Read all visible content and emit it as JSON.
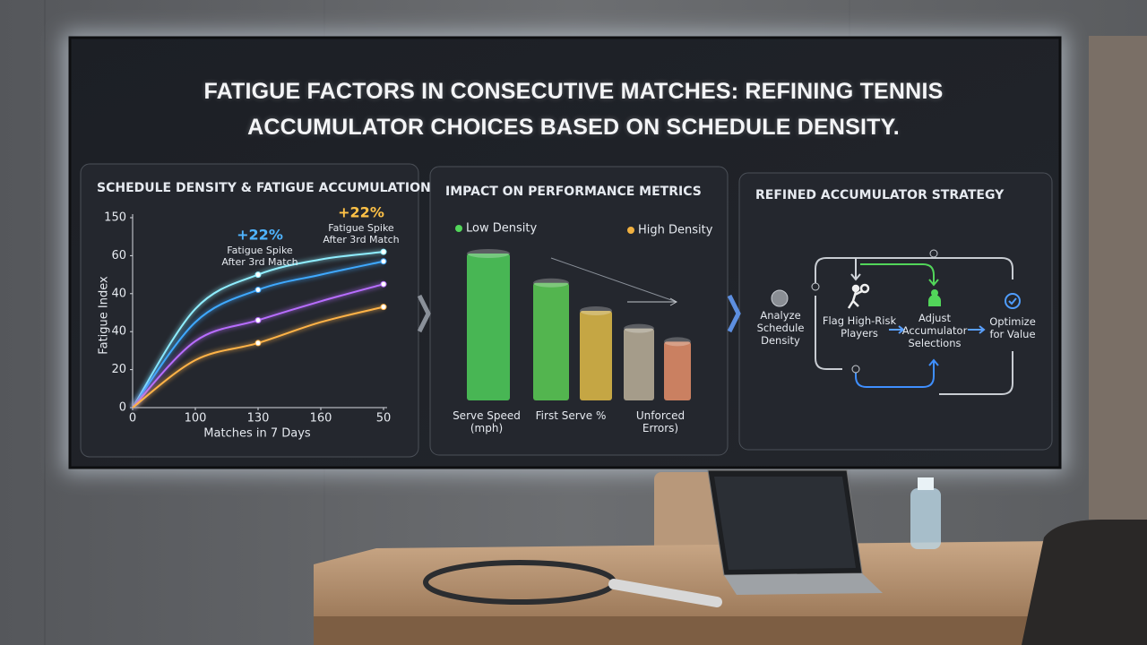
{
  "title": "FATIGUE FACTORS IN CONSECUTIVE MATCHES: REFINING TENNIS ACCUMULATOR CHOICES BASED ON SCHEDULE DENSITY.",
  "chart_data": [
    {
      "type": "line",
      "title": "SCHEDULE DENSITY & FATIGUE ACCUMULATION",
      "x_label": "Matches in 7 Days",
      "y_label": "Fatigue Index",
      "x": [
        0,
        1,
        2,
        3,
        4
      ],
      "xlim": [
        0,
        4
      ],
      "xticks": [
        0,
        {
          "value": 1,
          "label": "100"
        },
        {
          "value": 2,
          "label": "130"
        },
        {
          "value": 3,
          "label": "160"
        },
        {
          "value": 4,
          "label": "50"
        }
      ],
      "ylim": [
        0,
        100
      ],
      "yticks": [
        0,
        20,
        40,
        {
          "value": 60,
          "label": "40"
        },
        {
          "value": 80,
          "label": "60"
        },
        {
          "value": 100,
          "label": "150"
        }
      ],
      "series": [
        {
          "color": "#8feeff",
          "values": [
            0,
            52,
            70,
            78,
            82
          ]
        },
        {
          "color": "#3fa9ff",
          "values": [
            0,
            45,
            62,
            70,
            77
          ]
        },
        {
          "color": "#b86dff",
          "values": [
            0,
            35,
            46,
            56,
            65
          ]
        },
        {
          "color": "#ffb347",
          "values": [
            0,
            25,
            34,
            45,
            53
          ]
        }
      ],
      "annotations": [
        {
          "text": "+22%",
          "detail": "Fatigue Spike After 3rd Match",
          "color": "#4fb4ff"
        },
        {
          "text": "+22%",
          "detail": "Fatigue Spike After 3rd Match",
          "color": "#ffc247"
        }
      ]
    },
    {
      "type": "bar",
      "title": "IMPACT ON PERFORMANCE METRICS",
      "categories": [
        "Serve Speed (mph)",
        "First Serve %",
        null,
        "Unforced Errors)",
        null
      ],
      "values": [
        100,
        80,
        61,
        49,
        40
      ],
      "colors": [
        "#4fd05a",
        "#5ccf55",
        "#e2bd48",
        "#bcb29a",
        "#e8916a"
      ],
      "ylim": [
        0,
        100
      ],
      "legend": [
        {
          "name": "Low Density",
          "color": "#52d65a"
        },
        {
          "name": "High Density",
          "color": "#f0b040"
        }
      ]
    }
  ],
  "flow": {
    "title": "REFINED ACCUMULATOR STRATEGY",
    "nodes": [
      "Analyze Schedule Density",
      "Flag High-Risk Players",
      "Adjust Accumulator Selections",
      "Optimize for Value"
    ]
  }
}
